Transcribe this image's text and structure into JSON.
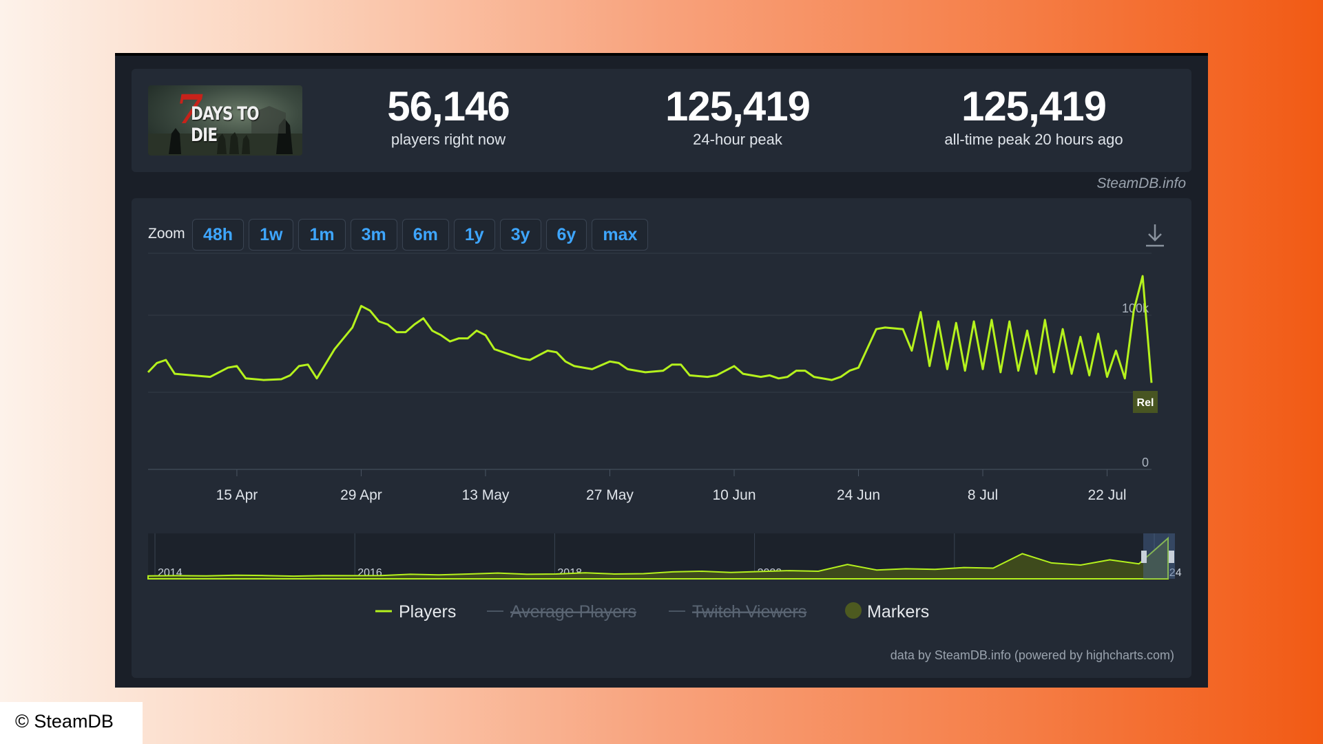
{
  "game": {
    "logo_numeral": "7",
    "logo_text": "DAYS TO DIE"
  },
  "stats": [
    {
      "value": "56,146",
      "label": "players right now"
    },
    {
      "value": "125,419",
      "label": "24-hour peak"
    },
    {
      "value": "125,419",
      "label": "all-time peak 20 hours ago"
    }
  ],
  "brand": "SteamDB.info",
  "zoom": {
    "label": "Zoom",
    "buttons": [
      "48h",
      "1w",
      "1m",
      "3m",
      "6m",
      "1y",
      "3y",
      "6y",
      "max"
    ]
  },
  "legend": {
    "players": "Players",
    "average": "Average Players",
    "twitch": "Twitch Viewers",
    "markers": "Markers"
  },
  "marker_label": "Rel",
  "credit": "data by SteamDB.info (powered by highcharts.com)",
  "copyright": "© SteamDB",
  "colors": {
    "accent": "#3ea6ff",
    "series": "#b5f21d",
    "background": "#232a35"
  },
  "chart_data": {
    "type": "line",
    "xlabel": "",
    "ylabel": "",
    "ylim": [
      0,
      125000
    ],
    "y_ticks": [
      "0",
      "100k"
    ],
    "x_ticks": [
      "15 Apr",
      "29 Apr",
      "13 May",
      "27 May",
      "10 Jun",
      "24 Jun",
      "8 Jul",
      "22 Jul"
    ],
    "start_date": "2024-04-05",
    "end_date": "2024-07-27",
    "series": [
      {
        "name": "Players",
        "points": [
          [
            "2024-04-05",
            63000
          ],
          [
            "2024-04-06",
            69000
          ],
          [
            "2024-04-07",
            71000
          ],
          [
            "2024-04-08",
            62000
          ],
          [
            "2024-04-10",
            61000
          ],
          [
            "2024-04-12",
            60000
          ],
          [
            "2024-04-14",
            66000
          ],
          [
            "2024-04-15",
            67000
          ],
          [
            "2024-04-16",
            59000
          ],
          [
            "2024-04-18",
            58000
          ],
          [
            "2024-04-20",
            58500
          ],
          [
            "2024-04-21",
            61000
          ],
          [
            "2024-04-22",
            67000
          ],
          [
            "2024-04-23",
            68000
          ],
          [
            "2024-04-24",
            59000
          ],
          [
            "2024-04-26",
            78000
          ],
          [
            "2024-04-28",
            92000
          ],
          [
            "2024-04-29",
            106000
          ],
          [
            "2024-04-30",
            103000
          ],
          [
            "2024-05-01",
            96000
          ],
          [
            "2024-05-02",
            94000
          ],
          [
            "2024-05-03",
            89000
          ],
          [
            "2024-05-04",
            89000
          ],
          [
            "2024-05-05",
            94000
          ],
          [
            "2024-05-06",
            98000
          ],
          [
            "2024-05-07",
            90000
          ],
          [
            "2024-05-08",
            87000
          ],
          [
            "2024-05-09",
            83000
          ],
          [
            "2024-05-10",
            85000
          ],
          [
            "2024-05-11",
            85000
          ],
          [
            "2024-05-12",
            90000
          ],
          [
            "2024-05-13",
            87000
          ],
          [
            "2024-05-14",
            78000
          ],
          [
            "2024-05-15",
            76000
          ],
          [
            "2024-05-17",
            72000
          ],
          [
            "2024-05-18",
            71000
          ],
          [
            "2024-05-19",
            74000
          ],
          [
            "2024-05-20",
            77000
          ],
          [
            "2024-05-21",
            76000
          ],
          [
            "2024-05-22",
            70000
          ],
          [
            "2024-05-23",
            67000
          ],
          [
            "2024-05-25",
            65000
          ],
          [
            "2024-05-27",
            70000
          ],
          [
            "2024-05-28",
            69000
          ],
          [
            "2024-05-29",
            65000
          ],
          [
            "2024-05-31",
            63000
          ],
          [
            "2024-06-02",
            64000
          ],
          [
            "2024-06-03",
            68000
          ],
          [
            "2024-06-04",
            68000
          ],
          [
            "2024-06-05",
            61000
          ],
          [
            "2024-06-07",
            60000
          ],
          [
            "2024-06-08",
            61000
          ],
          [
            "2024-06-10",
            67000
          ],
          [
            "2024-06-11",
            62000
          ],
          [
            "2024-06-13",
            60000
          ],
          [
            "2024-06-14",
            61000
          ],
          [
            "2024-06-15",
            59000
          ],
          [
            "2024-06-16",
            60000
          ],
          [
            "2024-06-17",
            64000
          ],
          [
            "2024-06-18",
            64000
          ],
          [
            "2024-06-19",
            60000
          ],
          [
            "2024-06-21",
            58000
          ],
          [
            "2024-06-22",
            60000
          ],
          [
            "2024-06-23",
            64000
          ],
          [
            "2024-06-24",
            66000
          ],
          [
            "2024-06-26",
            91000
          ],
          [
            "2024-06-27",
            92000
          ],
          [
            "2024-06-29",
            91000
          ],
          [
            "2024-06-30",
            77000
          ],
          [
            "2024-07-01",
            102000
          ],
          [
            "2024-07-02",
            67000
          ],
          [
            "2024-07-03",
            96000
          ],
          [
            "2024-07-04",
            65000
          ],
          [
            "2024-07-05",
            95000
          ],
          [
            "2024-07-06",
            64000
          ],
          [
            "2024-07-07",
            96000
          ],
          [
            "2024-07-08",
            65000
          ],
          [
            "2024-07-09",
            97000
          ],
          [
            "2024-07-10",
            63000
          ],
          [
            "2024-07-11",
            96000
          ],
          [
            "2024-07-12",
            64000
          ],
          [
            "2024-07-13",
            90000
          ],
          [
            "2024-07-14",
            62000
          ],
          [
            "2024-07-15",
            97000
          ],
          [
            "2024-07-16",
            63000
          ],
          [
            "2024-07-17",
            91000
          ],
          [
            "2024-07-18",
            62000
          ],
          [
            "2024-07-19",
            86000
          ],
          [
            "2024-07-20",
            61000
          ],
          [
            "2024-07-21",
            88000
          ],
          [
            "2024-07-22",
            60000
          ],
          [
            "2024-07-23",
            77000
          ],
          [
            "2024-07-24",
            59000
          ],
          [
            "2024-07-25",
            103000
          ],
          [
            "2024-07-26",
            125419
          ],
          [
            "2024-07-27",
            56146
          ]
        ]
      }
    ],
    "navigator": {
      "x_ticks": [
        "2014",
        "2016",
        "2018",
        "2020",
        "2022",
        "2024"
      ],
      "values": [
        3000,
        3500,
        3000,
        5000,
        4000,
        2000,
        4000,
        3500,
        4000,
        8000,
        6000,
        9000,
        12000,
        8000,
        9000,
        13000,
        9000,
        10000,
        16000,
        18000,
        14000,
        17000,
        20000,
        18000,
        40000,
        22000,
        26000,
        24000,
        30000,
        28000,
        75000,
        45000,
        38000,
        55000,
        42000,
        125419
      ]
    }
  }
}
